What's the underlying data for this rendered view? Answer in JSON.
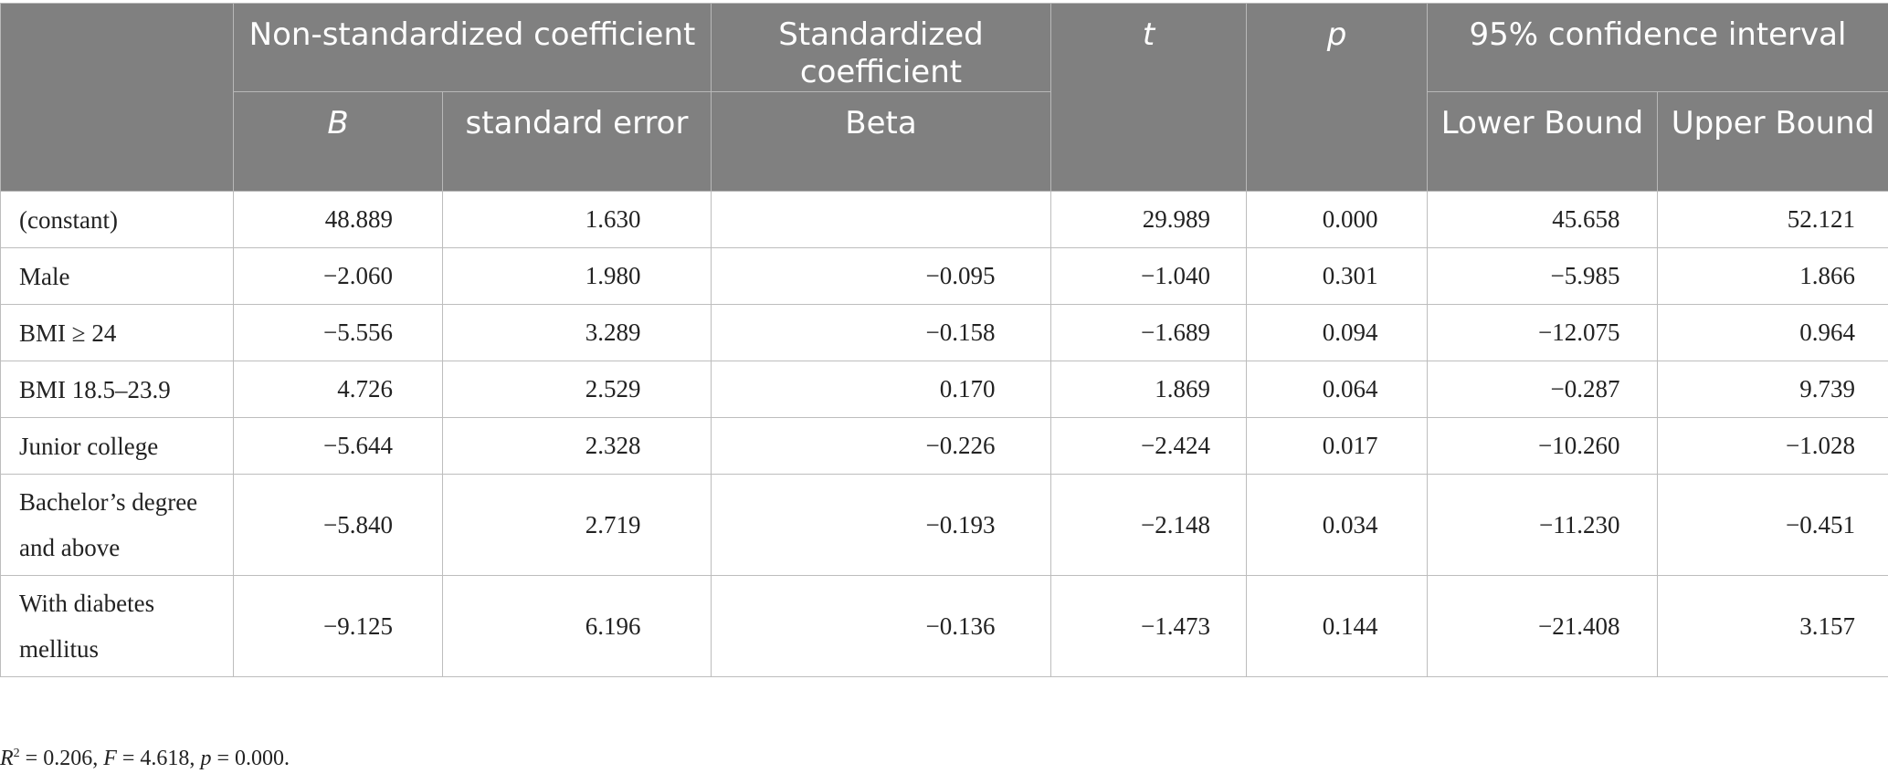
{
  "header": {
    "nonstd": "Non-standardized coefficient",
    "std": "Standardized coefficient",
    "t": "t",
    "p": "p",
    "ci": "95% confidence interval",
    "b": "B",
    "se": "standard error",
    "beta": "Beta",
    "lower": "Lower Bound",
    "upper": "Upper Bound"
  },
  "rows": [
    {
      "label": "(constant)",
      "b": "48.889",
      "se": "1.630",
      "beta": "",
      "t": "29.989",
      "p": "0.000",
      "lower": "45.658",
      "upper": "52.121"
    },
    {
      "label": "Male",
      "b": "−2.060",
      "se": "1.980",
      "beta": "−0.095",
      "t": "−1.040",
      "p": "0.301",
      "lower": "−5.985",
      "upper": "1.866"
    },
    {
      "label": "BMI ≥ 24",
      "b": "−5.556",
      "se": "3.289",
      "beta": "−0.158",
      "t": "−1.689",
      "p": "0.094",
      "lower": "−12.075",
      "upper": "0.964"
    },
    {
      "label": "BMI 18.5–23.9",
      "b": "4.726",
      "se": "2.529",
      "beta": "0.170",
      "t": "1.869",
      "p": "0.064",
      "lower": "−0.287",
      "upper": "9.739"
    },
    {
      "label": "Junior college",
      "b": "−5.644",
      "se": "2.328",
      "beta": "−0.226",
      "t": "−2.424",
      "p": "0.017",
      "lower": "−10.260",
      "upper": "−1.028"
    },
    {
      "label": "Bachelor’s degree and above",
      "b": "−5.840",
      "se": "2.719",
      "beta": "−0.193",
      "t": "−2.148",
      "p": "0.034",
      "lower": "−11.230",
      "upper": "−0.451"
    },
    {
      "label": "With diabetes mellitus",
      "b": "−9.125",
      "se": "6.196",
      "beta": "−0.136",
      "t": "−1.473",
      "p": "0.144",
      "lower": "−21.408",
      "upper": "3.157"
    }
  ],
  "note": {
    "r": "R",
    "r_sup": "2",
    "r_val": " = 0.206, ",
    "f": "F",
    "f_val": " = 4.618, ",
    "p": "p",
    "p_val": " = 0.000."
  },
  "colors": {
    "header_bg": "#808080",
    "header_text": "#ffffff",
    "border": "#bdbdbd"
  }
}
